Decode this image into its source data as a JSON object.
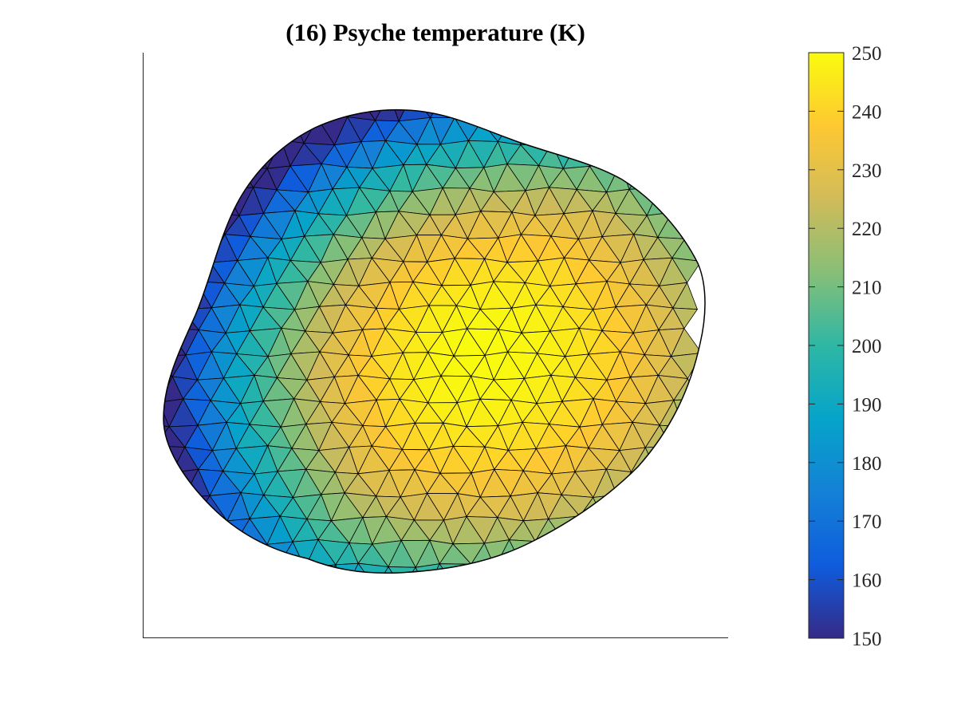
{
  "chart_data": {
    "type": "heatmap",
    "title": "(16) Psyche temperature (K)",
    "colorbar": {
      "min": 150,
      "max": 250,
      "ticks": [
        150,
        160,
        170,
        180,
        190,
        200,
        210,
        220,
        230,
        240,
        250
      ],
      "tick_labels": [
        "150",
        "160",
        "170",
        "180",
        "190",
        "200",
        "210",
        "220",
        "230",
        "240",
        "250"
      ],
      "colormap": "parula",
      "colormap_stops": [
        "#352a87",
        "#0f5cdd",
        "#1481d6",
        "#06a4ca",
        "#2eb7a4",
        "#87bf77",
        "#d1bb59",
        "#fec832",
        "#f9fb0e"
      ]
    },
    "surface": {
      "description_value_range": [
        150,
        250
      ],
      "hot_spot_value": 250,
      "limb_value": 150,
      "edge_color": "#000000"
    },
    "axes": {
      "xticks": "none",
      "yticks": "none",
      "grid": false,
      "box": "left-bottom"
    }
  }
}
